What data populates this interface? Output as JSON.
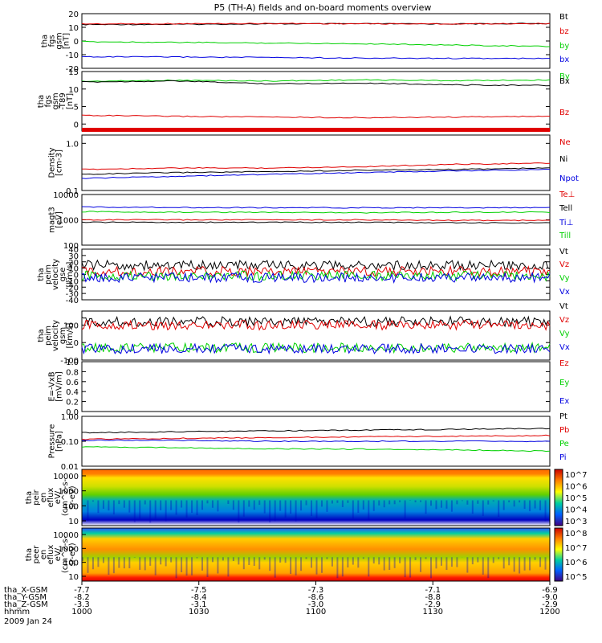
{
  "title": "P5 (TH-A) fields and on-board moments overview",
  "colors": {
    "black": "#000000",
    "red": "#e00000",
    "green": "#00d000",
    "blue": "#0000e0"
  },
  "chart_data": {
    "type": "line",
    "title": "P5 (TH-A) fields and on-board moments overview",
    "panels": [
      {
        "id": "fgs_gsm",
        "ylabel": [
          "tha",
          "fgs",
          "gsm",
          "[nT]"
        ],
        "ylim": [
          -20,
          20
        ],
        "ticks": [
          "20",
          "10",
          "0",
          "-10",
          "-20"
        ],
        "series": [
          {
            "name": "Bt",
            "color": "black",
            "values": [
              12,
              12.2,
              12.5,
              12.6,
              12.5,
              12.8
            ]
          },
          {
            "name": "bz",
            "color": "red",
            "values": [
              12.5,
              12.6,
              12.8,
              12.6,
              12.5,
              12.8
            ]
          },
          {
            "name": "by",
            "color": "green",
            "values": [
              -0.5,
              -1,
              -1.5,
              -2,
              -3,
              -4
            ]
          },
          {
            "name": "bx",
            "color": "blue",
            "values": [
              -11.5,
              -11.7,
              -12,
              -12.5,
              -12.7,
              -12.8
            ]
          }
        ]
      },
      {
        "id": "fgs_t89",
        "ylabel": [
          "tha",
          "fgs",
          "gsm",
          "-T89",
          "[nT]"
        ],
        "ylim": [
          -2,
          15
        ],
        "ticks": [
          "15",
          "10",
          "5",
          "0"
        ],
        "series": [
          {
            "name": "By",
            "color": "green",
            "values": [
              12.2,
              12.5,
              12.3,
              12.6,
              12.4,
              12.6
            ]
          },
          {
            "name": "Bx",
            "color": "black",
            "values": [
              12,
              12.3,
              11.5,
              11.7,
              11.2,
              11
            ]
          },
          {
            "name": "Bz",
            "color": "red",
            "values": [
              2.5,
              2.2,
              2.0,
              1.8,
              2.0,
              2.2
            ]
          }
        ]
      },
      {
        "id": "density",
        "ylabel": [
          "Density",
          "[cm-3]"
        ],
        "ylim": [
          0.1,
          1.5
        ],
        "log": true,
        "ticks": [
          "1.0",
          "0.1"
        ],
        "series": [
          {
            "name": "Ne",
            "color": "red",
            "values": [
              0.28,
              0.3,
              0.3,
              0.32,
              0.36,
              0.38
            ]
          },
          {
            "name": "Ni",
            "color": "black",
            "values": [
              0.22,
              0.24,
              0.25,
              0.27,
              0.28,
              0.3
            ]
          },
          {
            "name": "Npot",
            "color": "blue",
            "values": [
              0.18,
              0.2,
              0.22,
              0.24,
              0.26,
              0.28
            ]
          }
        ]
      },
      {
        "id": "temps",
        "ylabel": [
          "magt3",
          "[eV]"
        ],
        "ylim": [
          100,
          10000
        ],
        "log": true,
        "ticks": [
          "10000",
          "1000",
          "100"
        ],
        "series": [
          {
            "name": "Te⊥",
            "color": "red",
            "values": [
              1000,
              1000,
              1000,
              1000,
              950,
              950
            ]
          },
          {
            "name": "Tell",
            "color": "black",
            "values": [
              800,
              800,
              800,
              800,
              760,
              760
            ]
          },
          {
            "name": "Ti⊥",
            "color": "blue",
            "values": [
              3200,
              3100,
              3000,
              3000,
              3000,
              3000
            ]
          },
          {
            "name": "Till",
            "color": "green",
            "values": [
              2100,
              2000,
              2000,
              1900,
              2000,
              2000
            ]
          }
        ]
      },
      {
        "id": "vel_gse",
        "ylabel": [
          "tha",
          "peim",
          "velocity",
          "gse",
          "[km/s]"
        ],
        "ylim": [
          -40,
          40
        ],
        "ticks": [
          "40",
          "30",
          "20",
          "10",
          "0",
          "-10",
          "-20",
          "-30",
          "-40"
        ],
        "series": [
          {
            "name": "Vt",
            "color": "black",
            "values": [
              15,
              14,
              15,
              14,
              15,
              14
            ]
          },
          {
            "name": "Vz",
            "color": "red",
            "values": [
              5,
              5,
              5,
              5,
              5,
              5
            ]
          },
          {
            "name": "Vy",
            "color": "green",
            "values": [
              -2,
              -2,
              -2,
              -2,
              -2,
              -2
            ]
          },
          {
            "name": "Vx",
            "color": "blue",
            "values": [
              -5,
              -5,
              -5,
              -5,
              -5,
              -5
            ]
          }
        ]
      },
      {
        "id": "vel_gsm",
        "ylabel": [
          "tha",
          "peim",
          "velocity",
          "gsm",
          "[km/s]"
        ],
        "ylim": [
          -100,
          180
        ],
        "ticks": [
          "100",
          "0",
          "-100"
        ],
        "series": [
          {
            "name": "Vt",
            "color": "black",
            "values": [
              120,
              120,
              120,
              120,
              120,
              120
            ]
          },
          {
            "name": "Vz",
            "color": "red",
            "values": [
              100,
              100,
              100,
              100,
              100,
              100
            ]
          },
          {
            "name": "Vy",
            "color": "green",
            "values": [
              -30,
              -30,
              -30,
              -30,
              -30,
              -30
            ]
          },
          {
            "name": "Vx",
            "color": "blue",
            "values": [
              -35,
              -35,
              -35,
              -35,
              -35,
              -35
            ]
          }
        ]
      },
      {
        "id": "evxb",
        "ylabel": [
          "E=-VxB",
          "[mV/m]"
        ],
        "ylim": [
          0,
          1
        ],
        "ticks": [
          "1.0",
          "0.8",
          "0.6",
          "0.4",
          "0.2",
          "0.0"
        ],
        "series": [
          {
            "name": "Ez",
            "color": "red",
            "values": []
          },
          {
            "name": "Ey",
            "color": "green",
            "values": []
          },
          {
            "name": "Ex",
            "color": "blue",
            "values": []
          }
        ]
      },
      {
        "id": "pressure",
        "ylabel": [
          "Pressure",
          "[nPa]"
        ],
        "ylim": [
          0.01,
          1
        ],
        "log": true,
        "ticks": [
          "1.00",
          "0.10",
          "0.01"
        ],
        "series": [
          {
            "name": "Pt",
            "color": "black",
            "values": [
              0.22,
              0.24,
              0.26,
              0.28,
              0.3,
              0.33
            ]
          },
          {
            "name": "Pb",
            "color": "red",
            "values": [
              0.12,
              0.13,
              0.14,
              0.15,
              0.16,
              0.17
            ]
          },
          {
            "name": "Pe",
            "color": "green",
            "values": [
              0.06,
              0.055,
              0.05,
              0.048,
              0.045,
              0.04
            ]
          },
          {
            "name": "Pi",
            "color": "blue",
            "values": [
              0.11,
              0.11,
              0.1,
              0.1,
              0.1,
              0.1
            ]
          }
        ]
      }
    ],
    "spectrograms": [
      {
        "id": "peir",
        "ylabel": [
          "tha",
          "peir",
          "en",
          "eflux",
          "eV/",
          "(cm^2-s-",
          "sr-eV)"
        ],
        "yticks": [
          "10000",
          "1000",
          "100",
          "10"
        ],
        "cbar_ticks": [
          "10^7",
          "10^6",
          "10^5",
          "10^4",
          "10^3"
        ]
      },
      {
        "id": "peer",
        "ylabel": [
          "tha",
          "peer",
          "en",
          "eflux",
          "eV/",
          "(cm^2-s-",
          "sr-eV)"
        ],
        "yticks": [
          "10000",
          "1000",
          "100",
          "10"
        ],
        "cbar_ticks": [
          "10^8",
          "10^7",
          "10^6",
          "10^5"
        ]
      }
    ],
    "xaxis": {
      "rows": [
        {
          "label": "tha_X-GSM",
          "values": [
            "-7.7",
            "-7.5",
            "-7.3",
            "-7.1",
            "-6.9"
          ]
        },
        {
          "label": "tha_Y-GSM",
          "values": [
            "-8.2",
            "-8.4",
            "-8.6",
            "-8.8",
            "-9.0"
          ]
        },
        {
          "label": "tha_Z-GSM",
          "values": [
            "-3.3",
            "-3.1",
            "-3.0",
            "-2.9",
            "-2.9"
          ]
        },
        {
          "label": "hhmm",
          "values": [
            "1000",
            "1030",
            "1100",
            "1130",
            "1200"
          ]
        }
      ],
      "date": "2009 Jan 24"
    }
  }
}
